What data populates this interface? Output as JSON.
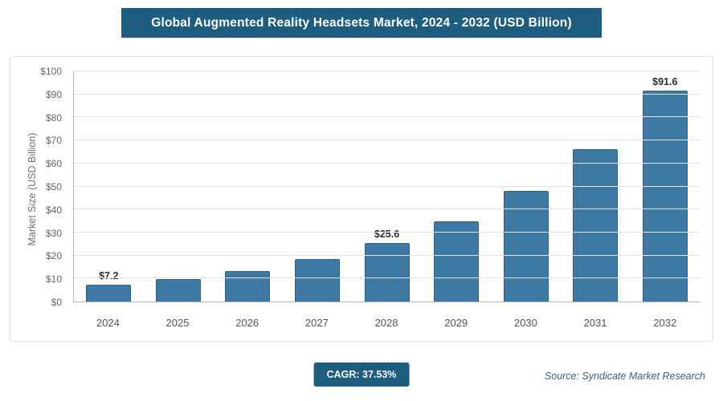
{
  "header": {
    "title": "Global Augmented Reality Headsets Market, 2024 - 2032 (USD Billion)"
  },
  "chart_data": {
    "type": "bar",
    "title": "Global Augmented Reality Headsets Market, 2024 - 2032 (USD Billion)",
    "categories": [
      "2024",
      "2025",
      "2026",
      "2027",
      "2028",
      "2029",
      "2030",
      "2031",
      "2032"
    ],
    "values": [
      7.2,
      9.8,
      13.4,
      18.4,
      25.6,
      34.9,
      48.2,
      66.3,
      91.6
    ],
    "bar_labels": [
      "$7.2",
      "",
      "",
      "",
      "$25.6",
      "",
      "",
      "",
      "$91.6"
    ],
    "xlabel": "",
    "ylabel": "Market Size (USD Billion)",
    "ylim": [
      0,
      100
    ],
    "ytick_step": 10,
    "yticks": [
      "$0",
      "$10",
      "$20",
      "$30",
      "$40",
      "$50",
      "$60",
      "$70",
      "$80",
      "$90",
      "$100"
    ],
    "grid": true,
    "legend": "none",
    "bar_color": "#3d79a3",
    "bar_border_color": "#2f6289"
  },
  "footer": {
    "cagr_label": "CAGR: 37.53%",
    "source": "Source: Syndicate Market Research"
  },
  "colors": {
    "accent_dark_blue": "#1d5e80",
    "bar_blue": "#3d79a3"
  }
}
